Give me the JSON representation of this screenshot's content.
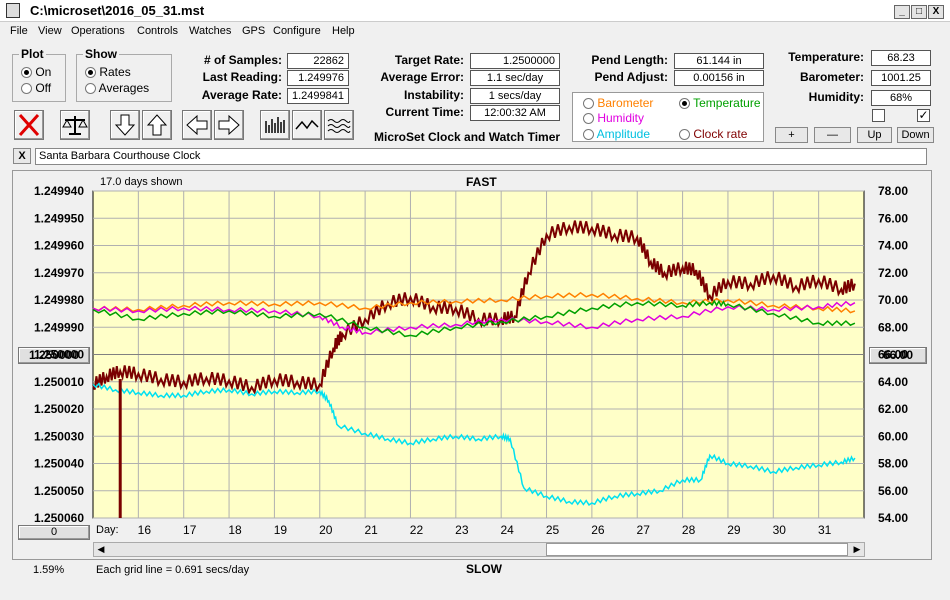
{
  "window": {
    "title": "C:\\microset\\2016_05_31.mst",
    "minimize": "_",
    "maximize": "□",
    "close": "X"
  },
  "menu": [
    "File",
    "View",
    "Operations",
    "Controls",
    "Watches",
    "GPS",
    "Configure",
    "Help"
  ],
  "plot_group": {
    "title": "Plot",
    "on": "On",
    "off": "Off",
    "selected": "On"
  },
  "show_group": {
    "title": "Show",
    "rates": "Rates",
    "averages": "Averages",
    "selected": "Rates"
  },
  "stats": {
    "samples_label": "# of Samples:",
    "samples": "22862",
    "last_label": "Last Reading:",
    "last": "1.249976",
    "avg_label": "Average Rate:",
    "avg": "1.2499841",
    "target_label": "Target Rate:",
    "target": "1.2500000",
    "avgerr_label": "Average Error:",
    "avgerr": "1.1 sec/day",
    "instab_label": "Instability:",
    "instab": "1 secs/day",
    "time_label": "Current Time:",
    "time": "12:00:32 AM",
    "pendlen_label": "Pend Length:",
    "pendlen": "61.144 in",
    "pendadj_label": "Pend Adjust:",
    "pendadj": "0.00156 in",
    "temp_label": "Temperature:",
    "temp": "68.23",
    "baro_label": "Barometer:",
    "baro": "1001.25",
    "hum_label": "Humidity:",
    "hum": "68%"
  },
  "app_caption": "MicroSet Clock and Watch Timer",
  "aux_options": [
    {
      "label": "Barometer",
      "color": "#ff8000",
      "selected": false
    },
    {
      "label": "Temperature",
      "color": "#00a000",
      "selected": true
    },
    {
      "label": "Humidity",
      "color": "#e000e0",
      "selected": false
    },
    {
      "label": "Clock rate",
      "color": "#800000",
      "selected": false
    },
    {
      "label": "Amplitude",
      "color": "#00c0e0",
      "selected": false
    }
  ],
  "aux_buttons": {
    "plus": "+",
    "minus": "—",
    "up": "Up",
    "down": "Down"
  },
  "checkboxes": {
    "left": "",
    "right": "✓"
  },
  "clock_bar": {
    "close": "X",
    "name": "Santa Barbara Courthouse Clock"
  },
  "graph": {
    "days_shown": "17.0 days shown",
    "fast": "FAST",
    "slow": "SLOW",
    "center_left": "1.250000",
    "center_right": "66.00",
    "scroll_value": "0",
    "percent": "1.59%",
    "grid_note": "Each grid line = 0.691 secs/day",
    "day_label": "Day:"
  },
  "chart_data": {
    "type": "line",
    "x_label": "Day",
    "x_ticks": [
      "16",
      "17",
      "18",
      "19",
      "20",
      "21",
      "22",
      "23",
      "24",
      "25",
      "26",
      "27",
      "28",
      "29",
      "30",
      "31"
    ],
    "y_left_ticks": [
      "1.249940",
      "1.249950",
      "1.249960",
      "1.249970",
      "1.249980",
      "1.249990",
      "1.250000",
      "1.250010",
      "1.250020",
      "1.250030",
      "1.250040",
      "1.250050",
      "1.250060"
    ],
    "y_right_ticks": [
      "78.00",
      "76.00",
      "74.00",
      "72.00",
      "70.00",
      "68.00",
      "66.00",
      "64.00",
      "62.00",
      "60.00",
      "58.00",
      "56.00",
      "54.00"
    ],
    "y_right_range": [
      54,
      78
    ],
    "grid": true,
    "series": [
      {
        "name": "Clock rate",
        "color": "#7a0000",
        "axis": "right",
        "x": [
          15.0,
          15.3,
          15.6,
          16.0,
          16.5,
          17.0,
          17.5,
          18.0,
          18.5,
          19.0,
          19.5,
          20.0,
          20.3,
          20.5,
          21.0,
          21.5,
          22.0,
          22.5,
          23.0,
          23.5,
          24.0,
          24.3,
          24.6,
          25.0,
          25.5,
          26.0,
          26.5,
          27.0,
          27.3,
          27.6,
          28.0,
          28.3,
          28.6,
          29.0,
          29.5,
          30.0,
          30.5,
          31.0,
          31.5,
          31.8
        ],
        "y": [
          63.8,
          64.4,
          64.8,
          64.6,
          64.2,
          64.0,
          64.3,
          64.1,
          63.6,
          64.2,
          64.0,
          63.8,
          66.5,
          67.5,
          68.6,
          69.8,
          70.2,
          69.5,
          69.4,
          68.6,
          68.6,
          68.8,
          72.0,
          74.8,
          75.4,
          75.3,
          74.8,
          74.6,
          72.8,
          72.0,
          72.4,
          72.2,
          70.3,
          71.4,
          71.2,
          71.8,
          71.0,
          71.5,
          70.8,
          71.2
        ]
      },
      {
        "name": "Barometer",
        "color": "#ff8000",
        "axis": "right",
        "x": [
          15.0,
          16.0,
          17.0,
          18.0,
          19.0,
          20.0,
          21.0,
          22.0,
          23.0,
          24.0,
          25.0,
          26.0,
          27.0,
          28.0,
          29.0,
          30.0,
          31.0,
          31.8
        ],
        "y": [
          69.4,
          69.3,
          69.6,
          69.8,
          69.7,
          69.8,
          69.4,
          69.8,
          69.9,
          70.0,
          70.3,
          70.4,
          70.1,
          69.8,
          70.0,
          69.6,
          69.4,
          69.2
        ]
      },
      {
        "name": "Humidity",
        "color": "#e000e0",
        "axis": "right",
        "x": [
          15.0,
          16.0,
          17.0,
          18.0,
          19.0,
          20.0,
          20.5,
          21.0,
          22.0,
          23.0,
          24.0,
          25.0,
          26.0,
          27.0,
          28.0,
          29.0,
          30.0,
          31.0,
          31.8
        ],
        "y": [
          69.4,
          69.2,
          69.4,
          69.3,
          69.2,
          68.8,
          68.0,
          67.6,
          68.0,
          68.2,
          68.6,
          68.4,
          68.0,
          68.6,
          68.8,
          69.5,
          69.3,
          69.5,
          69.8
        ]
      },
      {
        "name": "Temperature",
        "color": "#00a000",
        "axis": "right",
        "x": [
          15.0,
          16.0,
          17.0,
          18.0,
          19.0,
          20.0,
          21.0,
          22.0,
          23.0,
          24.0,
          25.0,
          26.0,
          27.0,
          28.0,
          28.6,
          29.0,
          30.0,
          31.0,
          31.8
        ],
        "y": [
          69.3,
          68.6,
          69.0,
          69.2,
          68.8,
          69.0,
          68.0,
          67.4,
          68.0,
          68.4,
          68.8,
          69.4,
          69.8,
          69.6,
          69.8,
          69.7,
          69.0,
          68.3,
          68.3
        ]
      },
      {
        "name": "Amplitude",
        "color": "#00e0f0",
        "axis": "right",
        "x": [
          15.0,
          15.5,
          16.0,
          16.5,
          17.0,
          17.5,
          18.0,
          18.5,
          19.0,
          19.5,
          20.0,
          20.2,
          20.4,
          21.0,
          21.5,
          22.0,
          22.5,
          23.0,
          23.5,
          24.0,
          24.2,
          24.5,
          25.0,
          25.5,
          26.0,
          26.5,
          27.0,
          27.5,
          28.0,
          28.4,
          28.6,
          29.0,
          29.5,
          30.0,
          30.5,
          31.0,
          31.5,
          31.8
        ],
        "y": [
          63.8,
          63.4,
          63.2,
          63.0,
          63.0,
          63.3,
          63.4,
          63.1,
          63.3,
          63.2,
          63.3,
          62.6,
          60.8,
          60.2,
          59.8,
          59.5,
          59.8,
          60.0,
          59.8,
          60.0,
          59.8,
          56.2,
          55.6,
          55.2,
          55.1,
          55.6,
          55.8,
          56.0,
          56.8,
          56.8,
          58.6,
          58.0,
          57.8,
          57.4,
          57.7,
          57.9,
          58.1,
          58.4
        ]
      }
    ]
  }
}
